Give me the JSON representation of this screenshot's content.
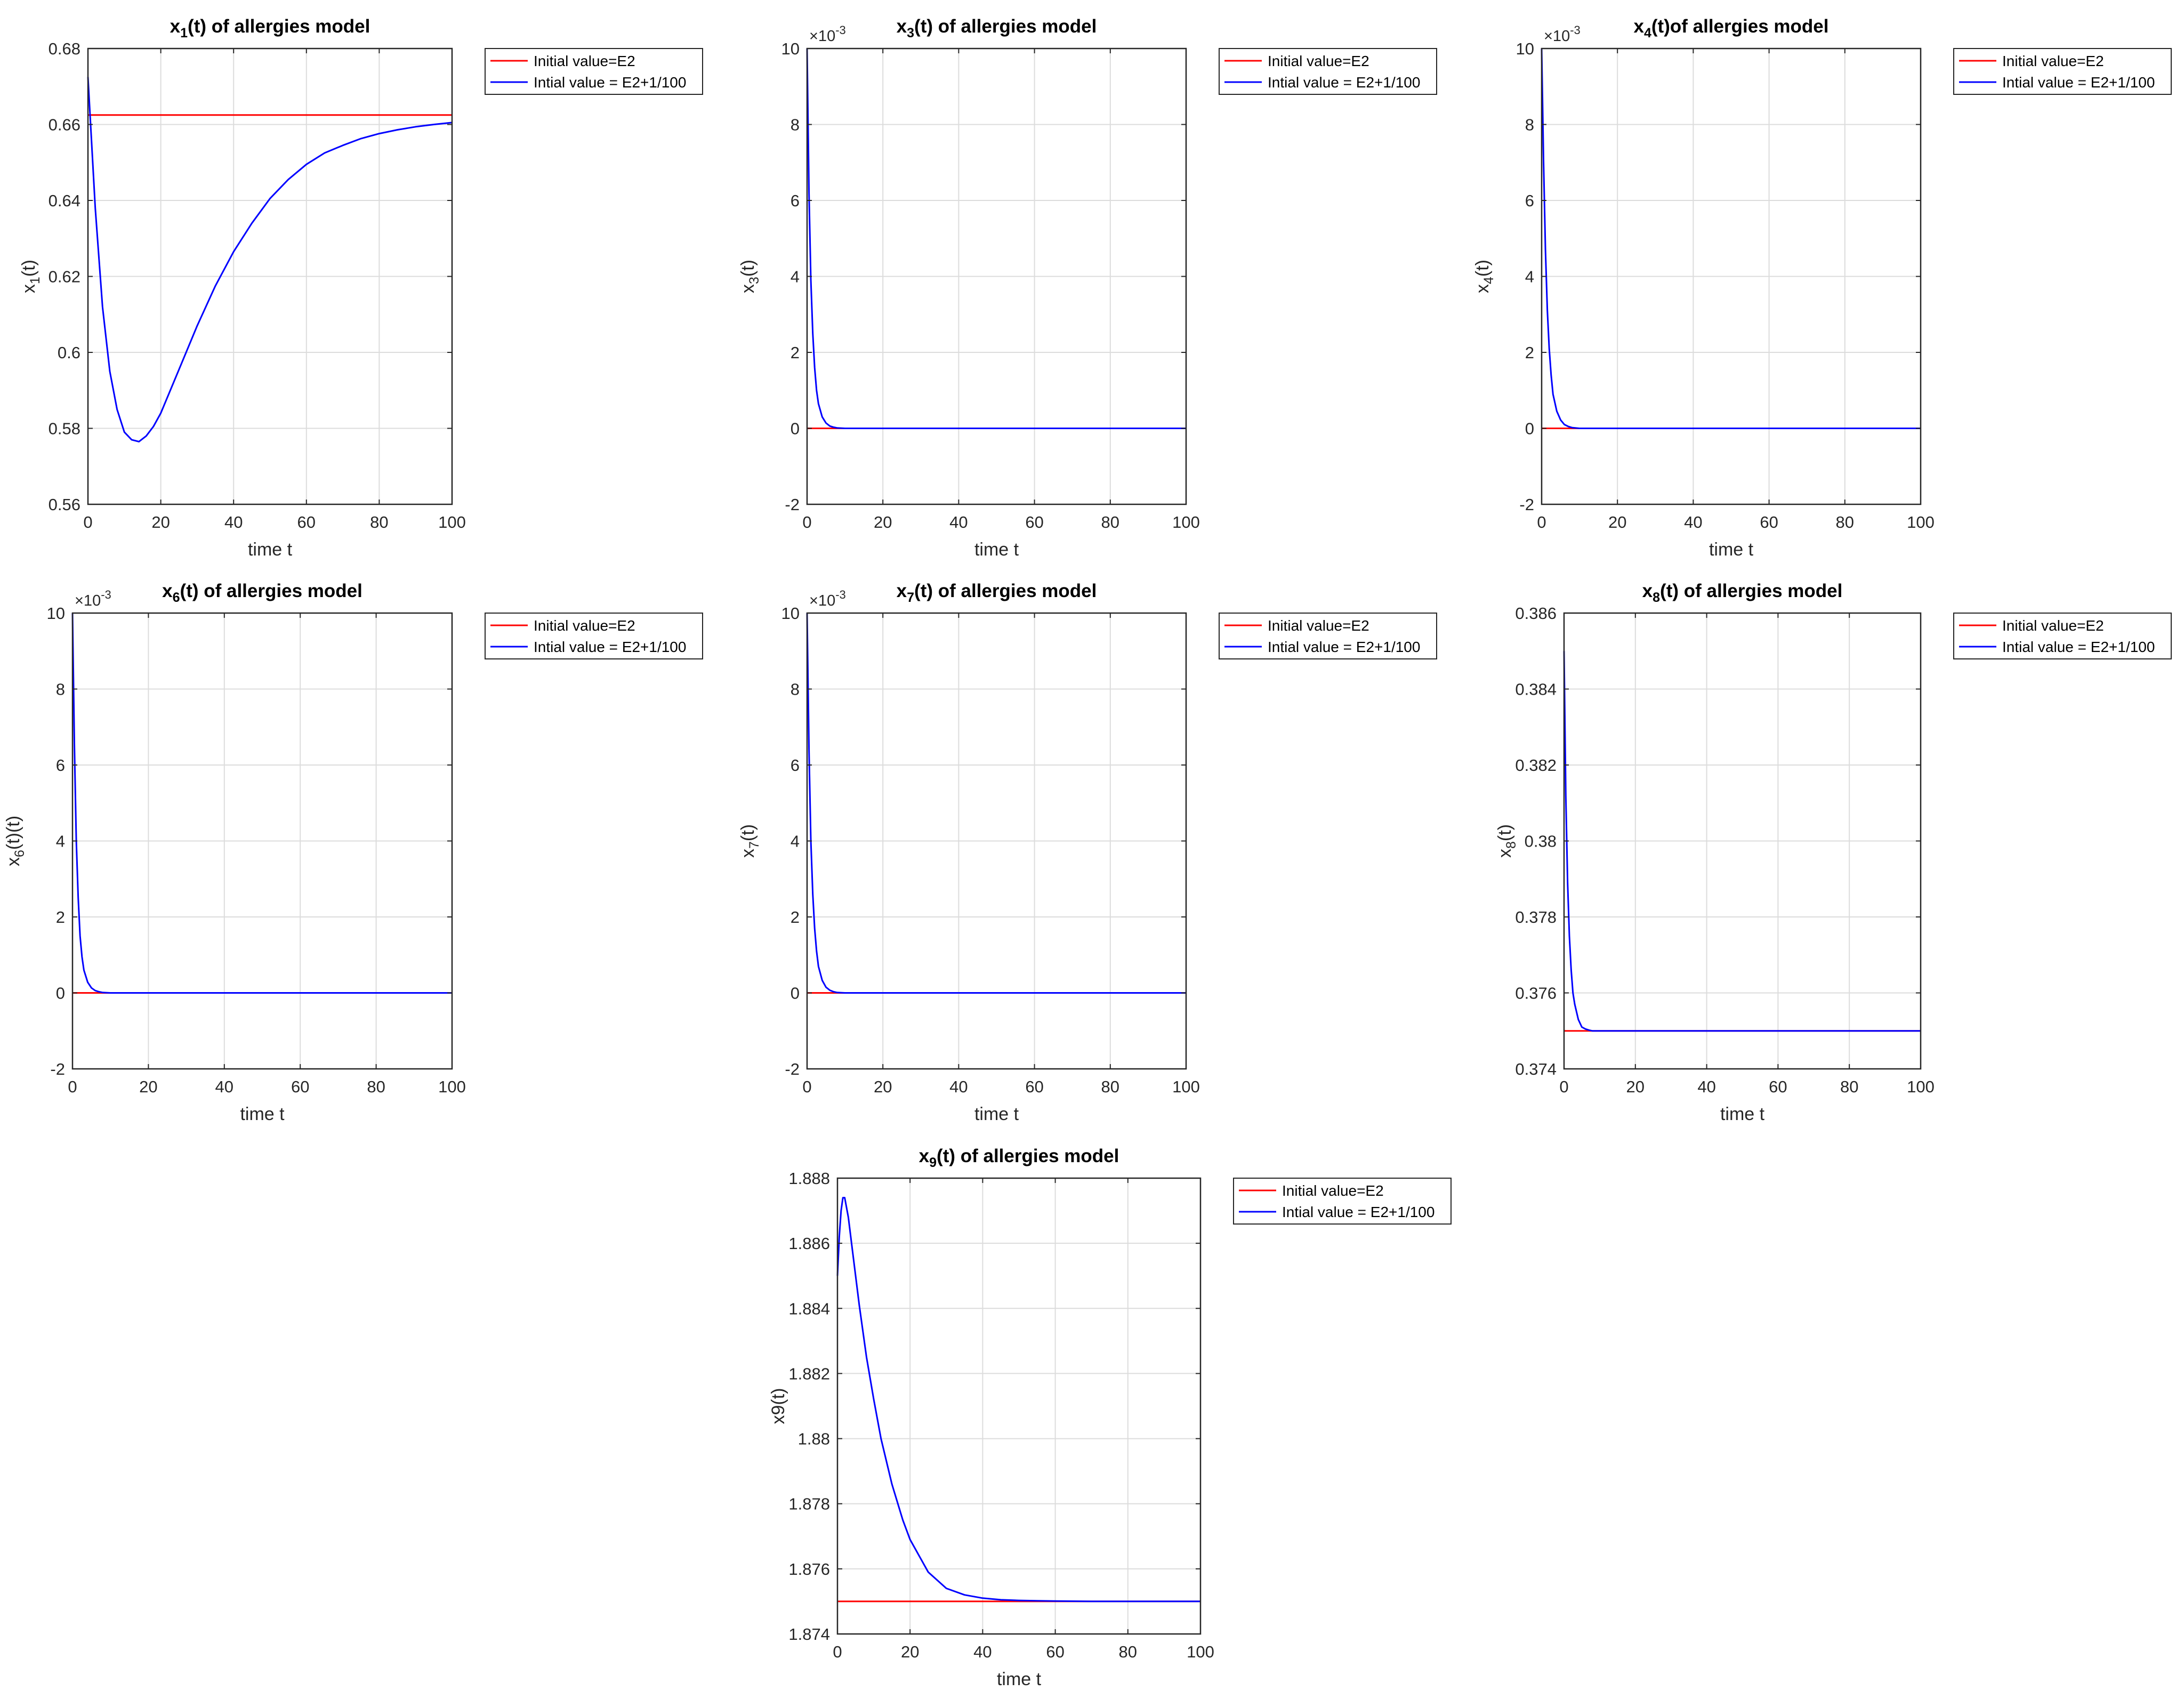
{
  "figure": {
    "line_colors": {
      "E2": "#ff0000",
      "perturbed": "#0000ff"
    },
    "grid": true,
    "legend_placement": "outside-top-right"
  },
  "chart_data": [
    {
      "id": "x1",
      "type": "line",
      "title_base": "x",
      "title_sub": "1",
      "title_rest": "(t) of allergies model",
      "xlabel": "time t",
      "ylabel_base": "x",
      "ylabel_sub": "1",
      "ylabel_rest": "(t)",
      "exponent_label": "",
      "xlim": [
        0,
        100
      ],
      "ylim": [
        0.56,
        0.68
      ],
      "xticks": [
        0,
        20,
        40,
        60,
        80,
        100
      ],
      "xtick_labels": [
        "0",
        "20",
        "40",
        "60",
        "80",
        "100"
      ],
      "yticks": [
        0.56,
        0.58,
        0.6,
        0.62,
        0.64,
        0.66,
        0.68
      ],
      "ytick_labels": [
        "0.56",
        "0.58",
        "0.6",
        "0.62",
        "0.64",
        "0.66",
        "0.68"
      ],
      "series": [
        {
          "name": "Initial value=E2",
          "x": [
            0,
            100
          ],
          "y": [
            0.6625,
            0.6625
          ]
        },
        {
          "name": "Intial value = E2+1/100",
          "x": [
            0,
            2,
            4,
            6,
            8,
            10,
            12,
            14,
            16,
            18,
            20,
            25,
            30,
            35,
            40,
            45,
            50,
            55,
            60,
            65,
            70,
            75,
            80,
            85,
            90,
            95,
            100
          ],
          "y": [
            0.6725,
            0.638,
            0.612,
            0.595,
            0.585,
            0.579,
            0.577,
            0.5765,
            0.578,
            0.5805,
            0.584,
            0.5955,
            0.607,
            0.6175,
            0.6265,
            0.634,
            0.6405,
            0.6455,
            0.6495,
            0.6525,
            0.6545,
            0.6563,
            0.6576,
            0.6586,
            0.6594,
            0.66,
            0.6605
          ]
        }
      ]
    },
    {
      "id": "x3",
      "type": "line",
      "title_base": "x",
      "title_sub": "3",
      "title_rest": "(t) of allergies model",
      "xlabel": "time t",
      "ylabel_base": "x",
      "ylabel_sub": "3",
      "ylabel_rest": "(t)",
      "exponent_label": "×10",
      "exponent_power": "-3",
      "xlim": [
        0,
        100
      ],
      "ylim": [
        -2,
        10
      ],
      "xticks": [
        0,
        20,
        40,
        60,
        80,
        100
      ],
      "xtick_labels": [
        "0",
        "20",
        "40",
        "60",
        "80",
        "100"
      ],
      "yticks": [
        -2,
        0,
        2,
        4,
        6,
        8,
        10
      ],
      "ytick_labels": [
        "-2",
        "0",
        "2",
        "4",
        "6",
        "8",
        "10"
      ],
      "series": [
        {
          "name": "Initial value=E2",
          "x": [
            0,
            100
          ],
          "y": [
            0,
            0
          ]
        },
        {
          "name": "Intial value = E2+1/100",
          "x": [
            0,
            0.5,
            1,
            1.5,
            2,
            2.5,
            3,
            4,
            5,
            6,
            7,
            8,
            10,
            100
          ],
          "y": [
            10,
            6.2,
            3.9,
            2.5,
            1.6,
            1.0,
            0.65,
            0.3,
            0.14,
            0.06,
            0.03,
            0.01,
            0,
            0
          ]
        }
      ]
    },
    {
      "id": "x4",
      "type": "line",
      "title_base": "x",
      "title_sub": "4",
      "title_rest": "(t)of allergies model",
      "xlabel": "time t",
      "ylabel_base": "x",
      "ylabel_sub": "4",
      "ylabel_rest": "(t)",
      "exponent_label": "×10",
      "exponent_power": "-3",
      "xlim": [
        0,
        100
      ],
      "ylim": [
        -2,
        10
      ],
      "xticks": [
        0,
        20,
        40,
        60,
        80,
        100
      ],
      "xtick_labels": [
        "0",
        "20",
        "40",
        "60",
        "80",
        "100"
      ],
      "yticks": [
        -2,
        0,
        2,
        4,
        6,
        8,
        10
      ],
      "ytick_labels": [
        "-2",
        "0",
        "2",
        "4",
        "6",
        "8",
        "10"
      ],
      "series": [
        {
          "name": "Initial value=E2",
          "x": [
            0,
            100
          ],
          "y": [
            0,
            0
          ]
        },
        {
          "name": "Intial value = E2+1/100",
          "x": [
            0,
            0.5,
            1,
            1.5,
            2,
            2.5,
            3,
            4,
            5,
            6,
            7,
            8,
            10,
            100
          ],
          "y": [
            10,
            7.0,
            4.7,
            3.1,
            2.1,
            1.4,
            0.9,
            0.45,
            0.22,
            0.1,
            0.05,
            0.02,
            0,
            0
          ]
        }
      ]
    },
    {
      "id": "x6",
      "type": "line",
      "title_base": "x",
      "title_sub": "6",
      "title_rest": "(t) of allergies model",
      "xlabel": "time t",
      "ylabel_base": "x",
      "ylabel_sub": "6",
      "ylabel_rest": "(t)(t)",
      "exponent_label": "×10",
      "exponent_power": "-3",
      "xlim": [
        0,
        100
      ],
      "ylim": [
        -2,
        10
      ],
      "xticks": [
        0,
        20,
        40,
        60,
        80,
        100
      ],
      "xtick_labels": [
        "0",
        "20",
        "40",
        "60",
        "80",
        "100"
      ],
      "yticks": [
        -2,
        0,
        2,
        4,
        6,
        8,
        10
      ],
      "ytick_labels": [
        "-2",
        "0",
        "2",
        "4",
        "6",
        "8",
        "10"
      ],
      "series": [
        {
          "name": "Initial value=E2",
          "x": [
            0,
            100
          ],
          "y": [
            0,
            0
          ]
        },
        {
          "name": "Intial value = E2+1/100",
          "x": [
            0,
            0.5,
            1,
            1.5,
            2,
            2.5,
            3,
            4,
            5,
            6,
            7,
            8,
            10,
            100
          ],
          "y": [
            10,
            6.5,
            4.0,
            2.5,
            1.5,
            0.95,
            0.6,
            0.28,
            0.13,
            0.06,
            0.03,
            0.01,
            0,
            0
          ]
        }
      ]
    },
    {
      "id": "x7",
      "type": "line",
      "title_base": "x",
      "title_sub": "7",
      "title_rest": "(t) of allergies model",
      "xlabel": "time t",
      "ylabel_base": "x",
      "ylabel_sub": "7",
      "ylabel_rest": "(t)",
      "exponent_label": "×10",
      "exponent_power": "-3",
      "xlim": [
        0,
        100
      ],
      "ylim": [
        -2,
        10
      ],
      "xticks": [
        0,
        20,
        40,
        60,
        80,
        100
      ],
      "xtick_labels": [
        "0",
        "20",
        "40",
        "60",
        "80",
        "100"
      ],
      "yticks": [
        -2,
        0,
        2,
        4,
        6,
        8,
        10
      ],
      "ytick_labels": [
        "-2",
        "0",
        "2",
        "4",
        "6",
        "8",
        "10"
      ],
      "series": [
        {
          "name": "Initial value=E2",
          "x": [
            0,
            100
          ],
          "y": [
            0,
            0
          ]
        },
        {
          "name": "Intial value = E2+1/100",
          "x": [
            0,
            0.5,
            1,
            1.5,
            2,
            2.5,
            3,
            4,
            5,
            6,
            7,
            8,
            10,
            100
          ],
          "y": [
            10,
            6.4,
            4.0,
            2.6,
            1.7,
            1.1,
            0.7,
            0.33,
            0.15,
            0.07,
            0.03,
            0.01,
            0,
            0
          ]
        }
      ]
    },
    {
      "id": "x8",
      "type": "line",
      "title_base": "x",
      "title_sub": "8",
      "title_rest": "(t) of allergies model",
      "xlabel": "time t",
      "ylabel_base": "x",
      "ylabel_sub": "8",
      "ylabel_rest": "(t)",
      "exponent_label": "",
      "xlim": [
        0,
        100
      ],
      "ylim": [
        0.374,
        0.386
      ],
      "xticks": [
        0,
        20,
        40,
        60,
        80,
        100
      ],
      "xtick_labels": [
        "0",
        "20",
        "40",
        "60",
        "80",
        "100"
      ],
      "yticks": [
        0.374,
        0.376,
        0.378,
        0.38,
        0.382,
        0.384,
        0.386
      ],
      "ytick_labels": [
        "0.374",
        "0.376",
        "0.378",
        "0.38",
        "0.382",
        "0.384",
        "0.386"
      ],
      "series": [
        {
          "name": "Initial value=E2",
          "x": [
            0,
            100
          ],
          "y": [
            0.375,
            0.375
          ]
        },
        {
          "name": "Intial value = E2+1/100",
          "x": [
            0,
            0.5,
            1,
            1.5,
            2,
            2.5,
            3,
            4,
            5,
            6,
            7,
            8,
            10,
            100
          ],
          "y": [
            0.385,
            0.3812,
            0.3789,
            0.3775,
            0.3766,
            0.376,
            0.3757,
            0.3753,
            0.3751,
            0.37505,
            0.37502,
            0.375,
            0.375,
            0.375
          ]
        }
      ]
    },
    {
      "id": "x9",
      "type": "line",
      "title_base": "x",
      "title_sub": "9",
      "title_rest": "(t) of allergies model",
      "xlabel": "time t",
      "ylabel_base": "x9(t)",
      "ylabel_sub": "",
      "ylabel_rest": "",
      "exponent_label": "",
      "xlim": [
        0,
        100
      ],
      "ylim": [
        1.874,
        1.888
      ],
      "xticks": [
        0,
        20,
        40,
        60,
        80,
        100
      ],
      "xtick_labels": [
        "0",
        "20",
        "40",
        "60",
        "80",
        "100"
      ],
      "yticks": [
        1.874,
        1.876,
        1.878,
        1.88,
        1.882,
        1.884,
        1.886,
        1.888
      ],
      "ytick_labels": [
        "1.874",
        "1.876",
        "1.878",
        "1.88",
        "1.882",
        "1.884",
        "1.886",
        "1.888"
      ],
      "series": [
        {
          "name": "Initial value=E2",
          "x": [
            0,
            100
          ],
          "y": [
            1.875,
            1.875
          ]
        },
        {
          "name": "Intial value = E2+1/100",
          "x": [
            0,
            0.5,
            1,
            1.5,
            2,
            3,
            4,
            6,
            8,
            10,
            12,
            15,
            18,
            20,
            25,
            30,
            35,
            40,
            45,
            50,
            55,
            60,
            70,
            80,
            100
          ],
          "y": [
            1.885,
            1.8862,
            1.887,
            1.8874,
            1.8874,
            1.8868,
            1.8859,
            1.8841,
            1.8825,
            1.8812,
            1.88,
            1.8786,
            1.8775,
            1.8769,
            1.8759,
            1.8754,
            1.8752,
            1.8751,
            1.87505,
            1.87503,
            1.87502,
            1.87501,
            1.875,
            1.875,
            1.875
          ]
        }
      ]
    }
  ]
}
